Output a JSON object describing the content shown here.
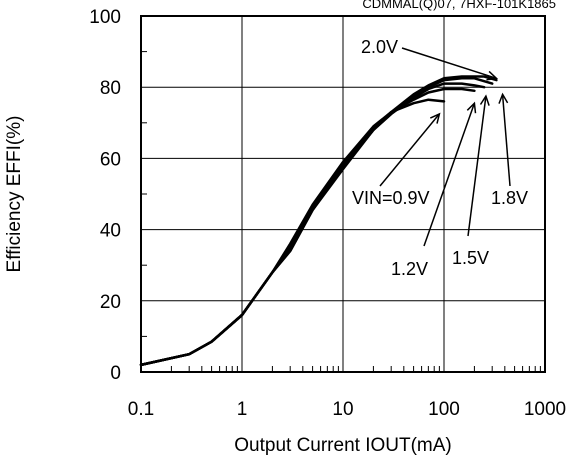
{
  "chart_data": {
    "type": "line",
    "top_note": "CDMMAL(Q)07, 7HXF-101K1865",
    "xlabel": "Output Current IOUT(mA)",
    "ylabel": "Efficiency EFFI(%)",
    "xscale": "log",
    "xlim": [
      0.1,
      1000
    ],
    "ylim": [
      0,
      100
    ],
    "grid": true,
    "x_ticks": [
      "0.1",
      "1",
      "10",
      "100",
      "1000"
    ],
    "y_ticks": [
      "0",
      "20",
      "40",
      "60",
      "80",
      "100"
    ],
    "series": [
      {
        "name": "VIN=0.9V",
        "x": [
          0.1,
          0.3,
          0.5,
          1,
          2,
          3,
          5,
          10,
          20,
          30,
          50,
          70,
          100
        ],
        "y": [
          2,
          5,
          8.5,
          16,
          28,
          36,
          47,
          59,
          69,
          73,
          75.5,
          76.5,
          76
        ]
      },
      {
        "name": "1.2V",
        "x": [
          0.1,
          0.3,
          0.5,
          1,
          2,
          3,
          5,
          10,
          20,
          30,
          50,
          70,
          100,
          150,
          200
        ],
        "y": [
          2,
          5,
          8.5,
          16,
          28,
          35,
          46,
          58.5,
          68.5,
          73,
          76.5,
          78.5,
          79.5,
          79.5,
          79
        ]
      },
      {
        "name": "1.5V",
        "x": [
          0.1,
          0.3,
          0.5,
          1,
          2,
          3,
          5,
          10,
          20,
          30,
          50,
          70,
          100,
          150,
          200,
          250
        ],
        "y": [
          2,
          5,
          8.5,
          16,
          28,
          34.5,
          46,
          58,
          68,
          72.5,
          77,
          79.5,
          81,
          81,
          80.5,
          80
        ]
      },
      {
        "name": "1.8V",
        "x": [
          0.1,
          0.3,
          0.5,
          1,
          2,
          3,
          5,
          10,
          20,
          30,
          50,
          70,
          100,
          150,
          200,
          300
        ],
        "y": [
          2,
          5,
          8.5,
          16,
          28,
          34,
          45.5,
          57.5,
          68,
          72.5,
          77.5,
          80,
          82,
          82.5,
          82.5,
          81
        ]
      },
      {
        "name": "2.0V",
        "x": [
          0.1,
          0.3,
          0.5,
          1,
          2,
          3,
          5,
          10,
          20,
          30,
          50,
          70,
          100,
          150,
          200,
          250,
          330
        ],
        "y": [
          2,
          5,
          8.5,
          16,
          28,
          34,
          45.5,
          57,
          68,
          73,
          78,
          80.5,
          82.5,
          83,
          83,
          83,
          82
        ]
      }
    ],
    "annotations": [
      {
        "text": "2.0V",
        "tip_x": 330,
        "tip_y": 82.5
      },
      {
        "text": "VIN=0.9V",
        "tip_x": 90,
        "tip_y": 72.5
      },
      {
        "text": "1.2V",
        "tip_x": 200,
        "tip_y": 75.5
      },
      {
        "text": "1.5V",
        "tip_x": 260,
        "tip_y": 77.5
      },
      {
        "text": "1.8V",
        "tip_x": 380,
        "tip_y": 78
      }
    ]
  }
}
